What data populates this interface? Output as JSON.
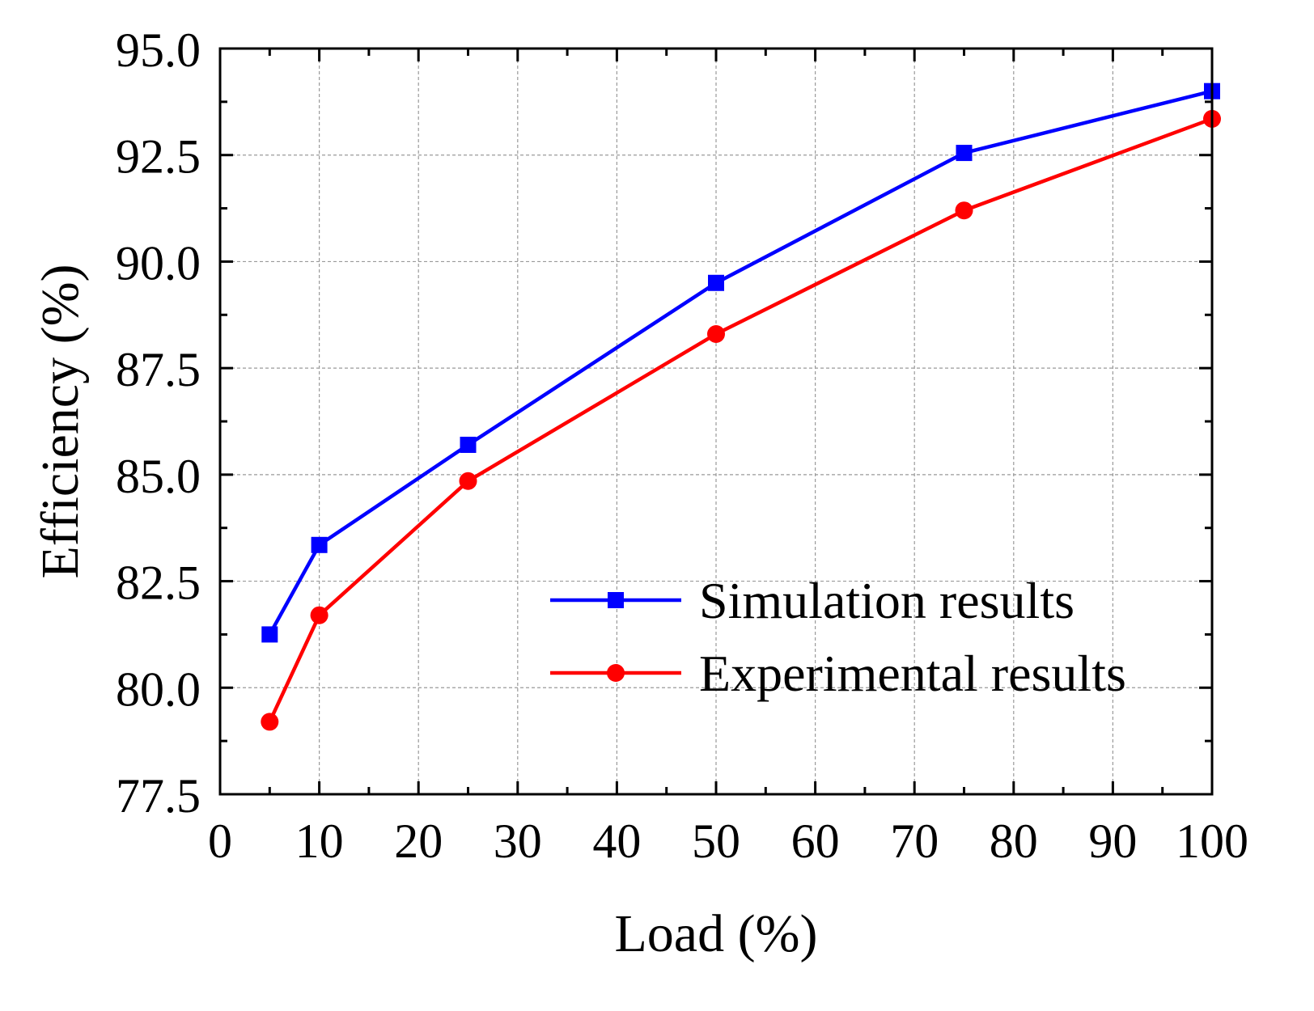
{
  "chart_data": {
    "type": "line",
    "title": "",
    "xlabel": "Load (%)",
    "ylabel": "Efficiency (%)",
    "xlim": [
      0,
      100
    ],
    "ylim": [
      77.5,
      95.0
    ],
    "x_ticks": [
      0,
      10,
      20,
      30,
      40,
      50,
      60,
      70,
      80,
      90,
      100
    ],
    "x_tick_labels": [
      "0",
      "10",
      "20",
      "30",
      "40",
      "50",
      "60",
      "70",
      "80",
      "90",
      "100"
    ],
    "y_ticks": [
      77.5,
      80.0,
      82.5,
      85.0,
      87.5,
      90.0,
      92.5,
      95.0
    ],
    "y_tick_labels": [
      "77.5",
      "80.0",
      "82.5",
      "85.0",
      "87.5",
      "90.0",
      "92.5",
      "95.0"
    ],
    "grid": true,
    "legend_position": "lower-right",
    "series": [
      {
        "name": "Simulation results",
        "color": "#0000ff",
        "marker": "square",
        "x": [
          5,
          10,
          25,
          50,
          75,
          100
        ],
        "y": [
          81.25,
          83.35,
          85.7,
          89.5,
          92.55,
          94.0
        ]
      },
      {
        "name": "Experimental results",
        "color": "#ff0000",
        "marker": "circle",
        "x": [
          5,
          10,
          25,
          50,
          75,
          100
        ],
        "y": [
          79.2,
          81.7,
          84.85,
          88.3,
          91.2,
          93.35
        ]
      }
    ]
  }
}
